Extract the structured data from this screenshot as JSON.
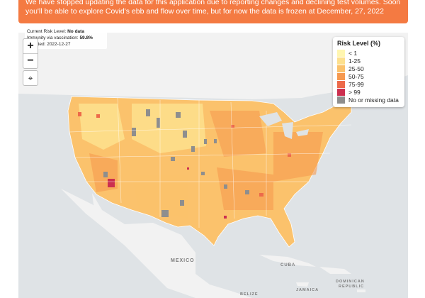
{
  "banner": {
    "text": "We have stopped updating the data for this application due to reporting changes and declining test volumes. Soon you'll be able to explore Covid's ebb and flow over time, but for now the data is frozen at December, 27, 2022"
  },
  "info_box": {
    "risk_label": "Current Risk Level:",
    "risk_value": "No data",
    "immunity_label": "Immunity via vaccination:",
    "immunity_value": "59.8%",
    "updated_label": "Updated:",
    "updated_value": "2022-12-27"
  },
  "controls": {
    "zoom_in": "+",
    "zoom_out": "−",
    "locate": "⌖"
  },
  "legend": {
    "title": "Risk Level (%)",
    "items": [
      {
        "label": "< 1",
        "color": "#fff6b0"
      },
      {
        "label": "1-25",
        "color": "#fde08d"
      },
      {
        "label": "25-50",
        "color": "#fbc26c"
      },
      {
        "label": "50-75",
        "color": "#f6994f"
      },
      {
        "label": "75-99",
        "color": "#ed6a4a"
      },
      {
        "label": "> 99",
        "color": "#cc2f4f"
      },
      {
        "label": "No or missing data",
        "color": "#8e8e8e"
      }
    ]
  },
  "map_labels": {
    "mexico": "MEXICO",
    "cuba": "CUBA",
    "dominican": "DOMINICAN",
    "republic": "REPUBLIC",
    "jamaica": "JAMAICA",
    "belize": "BELIZE"
  },
  "colors": {
    "banner": "#f47a42",
    "ocean": "#dfe3e6",
    "land": "#f2f2f2"
  }
}
